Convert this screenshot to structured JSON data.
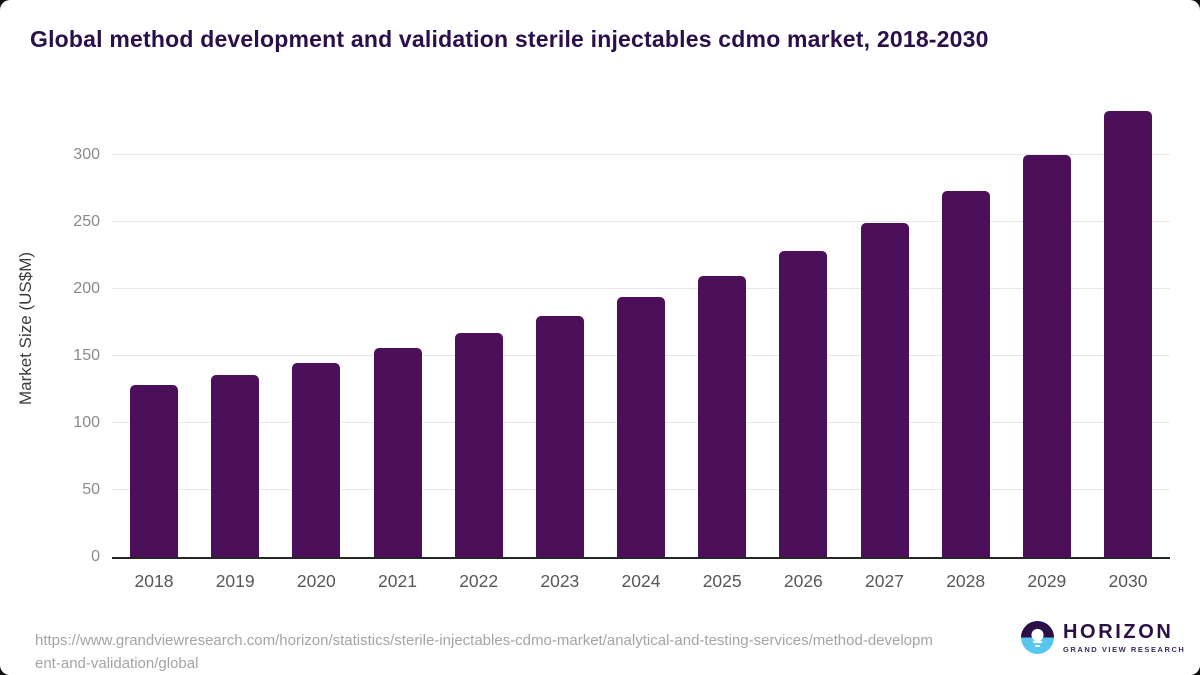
{
  "title": "Global method development and validation sterile injectables cdmo market, 2018-2030",
  "chart_data": {
    "type": "bar",
    "title": "Global method development and validation sterile injectables cdmo market, 2018-2030",
    "categories": [
      "2018",
      "2019",
      "2020",
      "2021",
      "2022",
      "2023",
      "2024",
      "2025",
      "2026",
      "2027",
      "2028",
      "2029",
      "2030"
    ],
    "values": [
      128,
      136,
      145,
      156,
      167,
      180,
      194,
      210,
      228,
      249,
      273,
      300,
      333
    ],
    "xlabel": "",
    "ylabel": "Market Size (US$M)",
    "yticks": [
      0,
      50,
      100,
      150,
      200,
      250,
      300
    ],
    "ylim": [
      0,
      340
    ],
    "grid": "horizontal",
    "legend": "none",
    "bar_color": "#4b1059"
  },
  "colors": {
    "title_text": "#2b0f4a",
    "bar": "#4b1059",
    "gridline": "#e7e7e7",
    "axis_line": "#262626",
    "ytick_text": "#8a8a8a",
    "xtick_text": "#575757",
    "url_text": "#a4a4a4",
    "logo_purple": "#2b1048",
    "logo_blue": "#59c6ee"
  },
  "footer": {
    "source_url": "https://www.grandviewresearch.com/horizon/statistics/sterile-injectables-cdmo-market/analytical-and-testing-services/method-development-and-validation/global",
    "logo": {
      "brand": "HORIZON",
      "sub_brand": "GRAND VIEW RESEARCH",
      "icon": "horizon-sun-icon"
    }
  }
}
